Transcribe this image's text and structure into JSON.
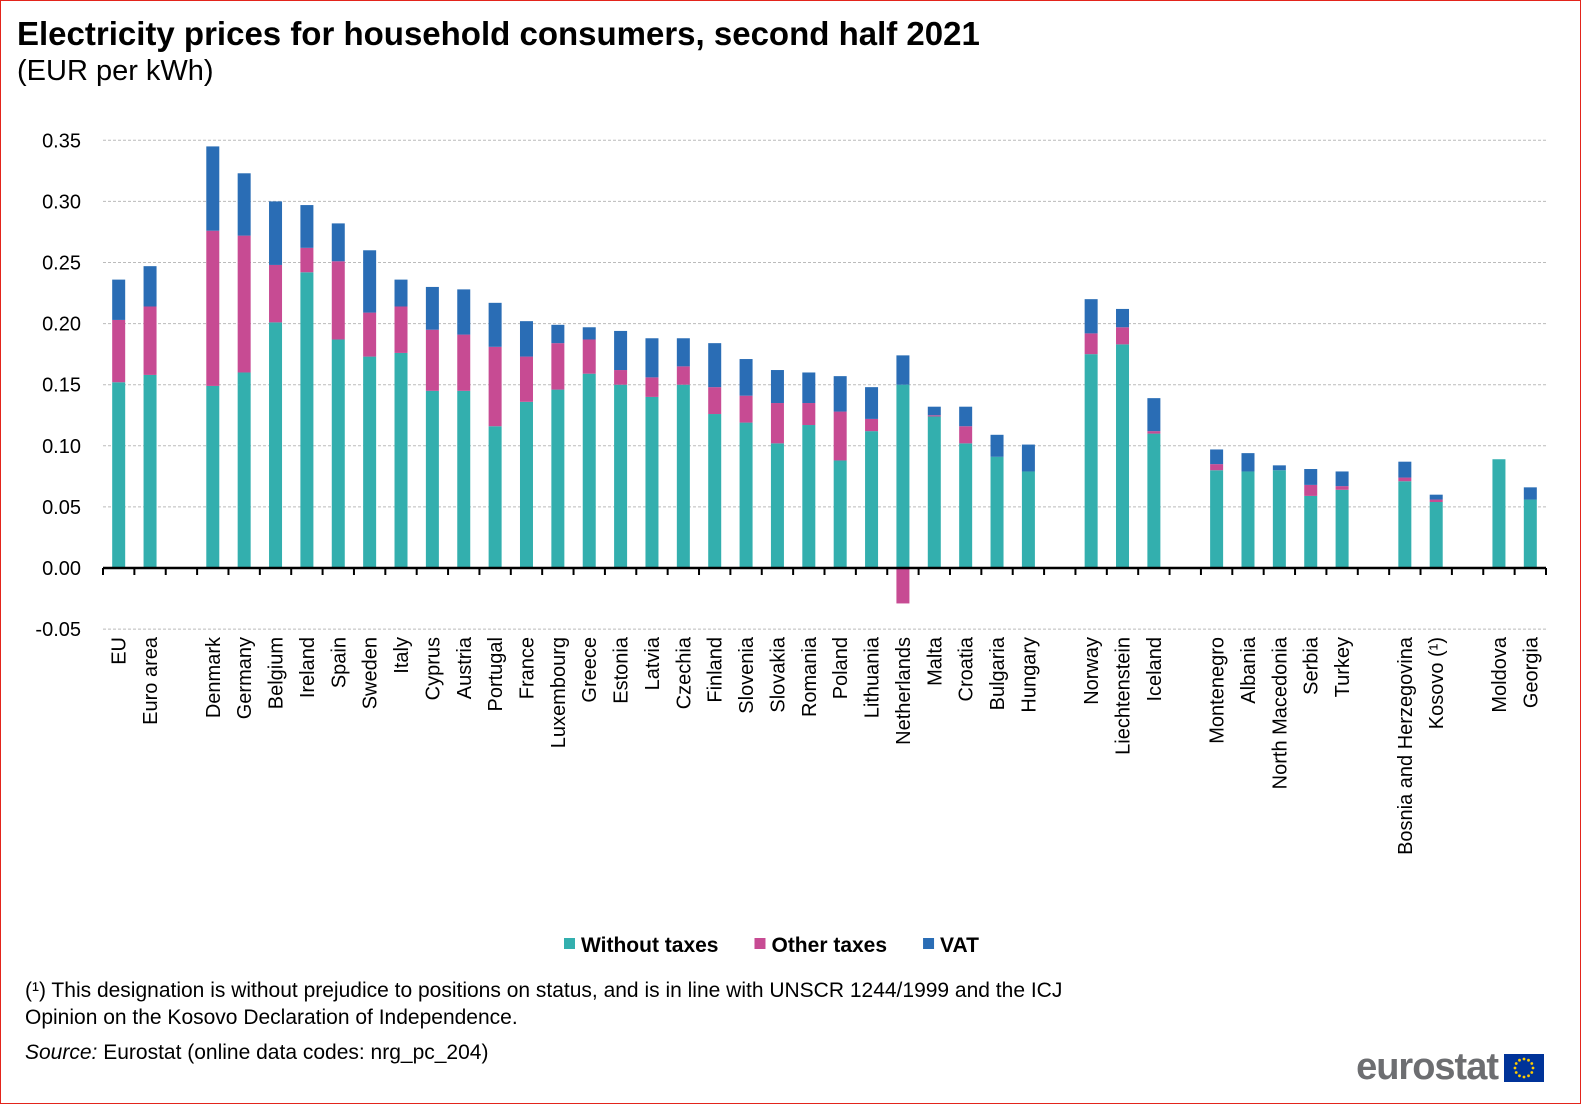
{
  "chart_data": {
    "type": "bar",
    "stacked": true,
    "title": "Electricity prices for household consumers, second half 2021",
    "subtitle": "(EUR per kWh)",
    "xlabel": "",
    "ylabel": "",
    "ylim": [
      -0.05,
      0.35
    ],
    "yticks": [
      "-0.05",
      "0.00",
      "0.05",
      "0.10",
      "0.15",
      "0.20",
      "0.25",
      "0.30",
      "0.35"
    ],
    "grid": true,
    "legend_position": "bottom",
    "groups": [
      [
        "EU",
        "Euro area"
      ],
      [
        "Denmark",
        "Germany",
        "Belgium",
        "Ireland",
        "Spain",
        "Sweden",
        "Italy",
        "Cyprus",
        "Austria",
        "Portugal",
        "France",
        "Luxembourg",
        "Greece",
        "Estonia",
        "Latvia",
        "Czechia",
        "Finland",
        "Slovenia",
        "Slovakia",
        "Romania",
        "Poland",
        "Lithuania",
        "Netherlands",
        "Malta",
        "Croatia",
        "Bulgaria",
        "Hungary"
      ],
      [
        "Norway",
        "Liechtenstein",
        "Iceland"
      ],
      [
        "Montenegro",
        "Albania",
        "North Macedonia",
        "Serbia",
        "Turkey"
      ],
      [
        "Bosnia and Herzegovina",
        "Kosovo (¹)"
      ],
      [
        "Moldova",
        "Georgia"
      ]
    ],
    "series": [
      {
        "name": "Without taxes",
        "color": "#33afae",
        "values": [
          0.152,
          0.158,
          0.149,
          0.16,
          0.201,
          0.242,
          0.187,
          0.173,
          0.176,
          0.145,
          0.145,
          0.116,
          0.136,
          0.146,
          0.159,
          0.15,
          0.14,
          0.15,
          0.126,
          0.119,
          0.102,
          0.117,
          0.088,
          0.112,
          0.15,
          0.124,
          0.102,
          0.091,
          0.079,
          0.175,
          0.183,
          0.11,
          0.08,
          0.079,
          0.08,
          0.059,
          0.064,
          0.071,
          0.054,
          0.089,
          0.056
        ]
      },
      {
        "name": "Other taxes",
        "color": "#c74b93",
        "values": [
          0.051,
          0.056,
          0.127,
          0.112,
          0.047,
          0.02,
          0.064,
          0.036,
          0.038,
          0.05,
          0.046,
          0.065,
          0.037,
          0.038,
          0.028,
          0.012,
          0.016,
          0.015,
          0.022,
          0.022,
          0.033,
          0.018,
          0.04,
          0.01,
          -0.029,
          0.001,
          0.014,
          0.0,
          0.0,
          0.017,
          0.014,
          0.002,
          0.005,
          0.0,
          0.0,
          0.009,
          0.003,
          0.003,
          0.002,
          0.0,
          0.0
        ]
      },
      {
        "name": "VAT",
        "color": "#2a6db5",
        "values": [
          0.033,
          0.033,
          0.069,
          0.051,
          0.052,
          0.035,
          0.031,
          0.051,
          0.022,
          0.035,
          0.037,
          0.036,
          0.029,
          0.015,
          0.01,
          0.032,
          0.032,
          0.023,
          0.036,
          0.03,
          0.027,
          0.025,
          0.029,
          0.026,
          0.024,
          0.007,
          0.016,
          0.018,
          0.022,
          0.028,
          0.015,
          0.027,
          0.012,
          0.015,
          0.004,
          0.013,
          0.012,
          0.013,
          0.004,
          0.0,
          0.01
        ]
      }
    ]
  },
  "footnotes": {
    "note_line1": "(¹) This designation is without prejudice to positions on status, and is in line with UNSCR 1244/1999 and the ICJ",
    "note_line2": "Opinion on the Kosovo Declaration of Independence.",
    "source_label": "Source:",
    "source_text": " Eurostat (online data codes: nrg_pc_204)"
  },
  "logo": {
    "text": "eurostat"
  }
}
